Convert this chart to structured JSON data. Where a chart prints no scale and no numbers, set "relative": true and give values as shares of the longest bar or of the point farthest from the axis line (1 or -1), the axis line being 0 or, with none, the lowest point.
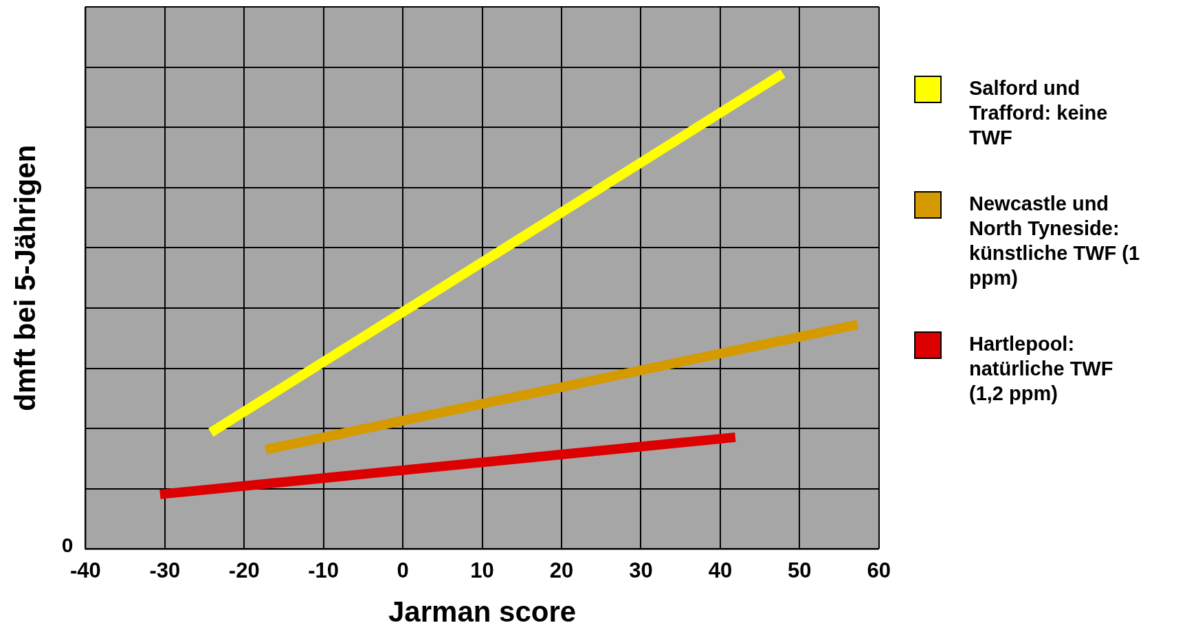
{
  "chart_data": {
    "type": "line",
    "xlabel": "Jarman score",
    "ylabel": "dmft bei 5-Jährigen",
    "relative": true,
    "marker": "none",
    "grid": true,
    "legend": "right",
    "xlim": [
      -40,
      60
    ],
    "xticks": [
      -40,
      -30,
      -20,
      -10,
      0,
      10,
      20,
      30,
      40,
      50,
      60
    ],
    "annotations": [
      "0"
    ],
    "series": [
      {
        "name": "Salford und Trafford: keine TWF",
        "color": "#ffff00",
        "x": [
          -24.2,
          47.9
        ],
        "values": [
          0.245,
          1
        ]
      },
      {
        "name": "Newcastle und North Tyneside: künstliche TWF (1 ppm)",
        "color": "#d49a00",
        "x": [
          -17.3,
          57.3
        ],
        "values": [
          0.209,
          0.472
        ]
      },
      {
        "name": "Hartlepool: natürliche TWF (1,2 ppm)",
        "color": "#dd0000",
        "x": [
          -30.6,
          41.9
        ],
        "values": [
          0.115,
          0.235
        ]
      }
    ]
  }
}
